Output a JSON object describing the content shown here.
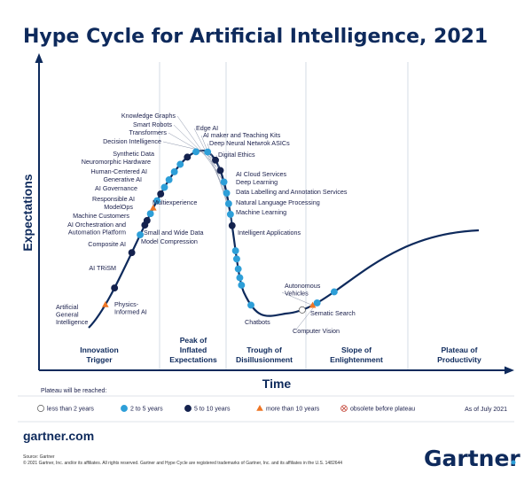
{
  "chart_data": {
    "type": "hype-cycle",
    "title": "Hype Cycle for Artificial Intelligence, 2021",
    "xlabel": "Time",
    "ylabel": "Expectations",
    "phases": [
      "Innovation Trigger",
      "Peak of Inflated Expectations",
      "Trough of Disillusionment",
      "Slope of Enlightenment",
      "Plateau of Productivity"
    ],
    "legend_title": "Plateau will be reached:",
    "legend": [
      {
        "key": "lt2",
        "label": "less than 2 years",
        "color": "#ffffff"
      },
      {
        "key": "2to5",
        "label": "2 to 5 years",
        "color": "#2e9fd8"
      },
      {
        "key": "5to10",
        "label": "5 to 10 years",
        "color": "#14224e"
      },
      {
        "key": "gt10",
        "label": "more than 10 years",
        "color": "#ee7524"
      },
      {
        "key": "obs",
        "label": "obsolete before plateau",
        "color": "#ffffff"
      }
    ],
    "as_of": "As of July 2021",
    "technologies": [
      {
        "name": "Artificial General Intelligence",
        "phase": "Innovation Trigger",
        "plateau": "gt10"
      },
      {
        "name": "Physics-Informed AI",
        "phase": "Innovation Trigger",
        "plateau": "5to10"
      },
      {
        "name": "AI TRiSM",
        "phase": "Innovation Trigger",
        "plateau": "5to10"
      },
      {
        "name": "Composite AI",
        "phase": "Innovation Trigger",
        "plateau": "2to5"
      },
      {
        "name": "Model Compression",
        "phase": "Innovation Trigger",
        "plateau": "5to10"
      },
      {
        "name": "Small and Wide Data",
        "phase": "Innovation Trigger",
        "plateau": "5to10"
      },
      {
        "name": "AI Orchestration and Automation Platform",
        "phase": "Innovation Trigger",
        "plateau": "2to5"
      },
      {
        "name": "Machine Customers",
        "phase": "Innovation Trigger",
        "plateau": "gt10"
      },
      {
        "name": "ModelOps",
        "phase": "Innovation Trigger",
        "plateau": "2to5"
      },
      {
        "name": "Multiexperience",
        "phase": "Innovation Trigger",
        "plateau": "5to10"
      },
      {
        "name": "Responsible AI",
        "phase": "Innovation Trigger",
        "plateau": "2to5"
      },
      {
        "name": "AI Governance",
        "phase": "Innovation Trigger",
        "plateau": "2to5"
      },
      {
        "name": "Generative AI",
        "phase": "Innovation Trigger",
        "plateau": "2to5"
      },
      {
        "name": "Human-Centered AI",
        "phase": "Innovation Trigger",
        "plateau": "2to5"
      },
      {
        "name": "Neuromorphic Hardware",
        "phase": "Peak of Inflated Expectations",
        "plateau": "5to10"
      },
      {
        "name": "Synthetic Data",
        "phase": "Peak of Inflated Expectations",
        "plateau": "2to5"
      },
      {
        "name": "Decision Intelligence",
        "phase": "Peak of Inflated Expectations",
        "plateau": "2to5"
      },
      {
        "name": "Transformers",
        "phase": "Peak of Inflated Expectations",
        "plateau": "5to10"
      },
      {
        "name": "Smart Robots",
        "phase": "Peak of Inflated Expectations",
        "plateau": "5to10"
      },
      {
        "name": "Knowledge Graphs",
        "phase": "Peak of Inflated Expectations",
        "plateau": "2to5"
      },
      {
        "name": "Edge AI",
        "phase": "Peak of Inflated Expectations",
        "plateau": "2to5"
      },
      {
        "name": "AI maker and Teaching Kits",
        "phase": "Peak of Inflated Expectations",
        "plateau": "2to5"
      },
      {
        "name": "Deep Neural Netwrok ASICs",
        "phase": "Peak of Inflated Expectations",
        "plateau": "2to5"
      },
      {
        "name": "Digital Ethics",
        "phase": "Peak of Inflated Expectations",
        "plateau": "5to10"
      },
      {
        "name": "AI Cloud Services",
        "phase": "Trough of Disillusionment",
        "plateau": "2to5"
      },
      {
        "name": "Deep Learning",
        "phase": "Trough of Disillusionment",
        "plateau": "2to5"
      },
      {
        "name": "Data Labelling and Annotation Services",
        "phase": "Trough of Disillusionment",
        "plateau": "2to5"
      },
      {
        "name": "Natural Language Processing",
        "phase": "Trough of Disillusionment",
        "plateau": "2to5"
      },
      {
        "name": "Machine Learning",
        "phase": "Trough of Disillusionment",
        "plateau": "2to5"
      },
      {
        "name": "Intelligent Applications",
        "phase": "Trough of Disillusionment",
        "plateau": "2to5"
      },
      {
        "name": "Chatbots",
        "phase": "Trough of Disillusionment",
        "plateau": "lt2"
      },
      {
        "name": "Autonomous Vehicles",
        "phase": "Trough of Disillusionment",
        "plateau": "gt10"
      },
      {
        "name": "Computer Vision",
        "phase": "Trough of Disillusionment",
        "plateau": "2to5"
      },
      {
        "name": "Sematic Search",
        "phase": "Slope of Enlightenment",
        "plateau": "2to5"
      }
    ]
  },
  "footer": {
    "site": "gartner.com",
    "source": "Source: Gartner",
    "copyright": "© 2021 Gartner, Inc. and/or its affiliates. All rights reserved. Gartner and Hype Cycle are registered trademarks of Gartner, Inc. and its affiliates in the U.S. 1482644",
    "brand": "Gartner"
  }
}
